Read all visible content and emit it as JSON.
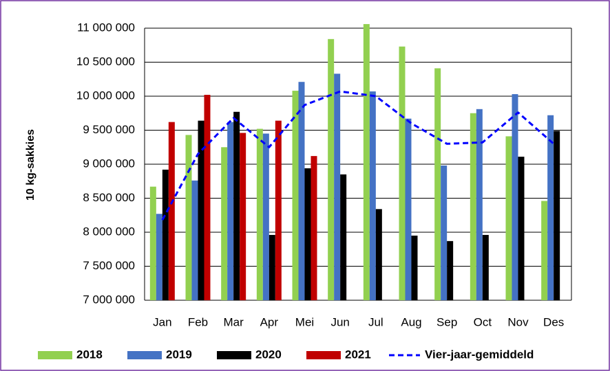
{
  "chart_data": {
    "type": "bar",
    "y_label": "10 kg-sakkies",
    "categories": [
      "Jan",
      "Feb",
      "Mar",
      "Apr",
      "Mei",
      "Jun",
      "Jul",
      "Aug",
      "Sep",
      "Oct",
      "Nov",
      "Des"
    ],
    "series": [
      {
        "name": "2018",
        "color": "#92d050",
        "values": [
          8670000,
          9430000,
          9250000,
          9520000,
          10080000,
          10840000,
          11060000,
          10730000,
          10410000,
          9750000,
          9410000,
          8460000
        ]
      },
      {
        "name": "2019",
        "color": "#4472c4",
        "values": [
          8270000,
          8760000,
          9620000,
          9450000,
          10210000,
          10330000,
          10070000,
          9670000,
          8980000,
          9810000,
          10030000,
          9720000
        ]
      },
      {
        "name": "2020",
        "color": "#000000",
        "values": [
          8920000,
          9640000,
          9770000,
          7960000,
          8940000,
          8850000,
          8340000,
          7950000,
          7870000,
          7960000,
          9110000,
          9490000
        ]
      },
      {
        "name": "2021",
        "color": "#c00000",
        "values": [
          9620000,
          10020000,
          9460000,
          9640000,
          9120000,
          null,
          null,
          null,
          null,
          null,
          null,
          null
        ]
      },
      {
        "name": "Vier-jaar-gemiddeld",
        "color": "#0000ff",
        "line": true,
        "dashed": true,
        "values": [
          8180000,
          9150000,
          9680000,
          9250000,
          9870000,
          10070000,
          10000000,
          9600000,
          9300000,
          9320000,
          9760000,
          9300000
        ]
      }
    ],
    "ylim": [
      7000000,
      11000000
    ],
    "yticks": [
      {
        "value": 7000000,
        "label": "7 000 000"
      },
      {
        "value": 7500000,
        "label": "7 500 000"
      },
      {
        "value": 8000000,
        "label": "8 000 000"
      },
      {
        "value": 8500000,
        "label": "8 500 000"
      },
      {
        "value": 9000000,
        "label": "9 000 000"
      },
      {
        "value": 9500000,
        "label": "9 500 000"
      },
      {
        "value": 10000000,
        "label": "10 000 000"
      },
      {
        "value": 10500000,
        "label": "10 500 000"
      },
      {
        "value": 11000000,
        "label": "11 000 000"
      }
    ],
    "grid": true,
    "legend": "bottom"
  }
}
